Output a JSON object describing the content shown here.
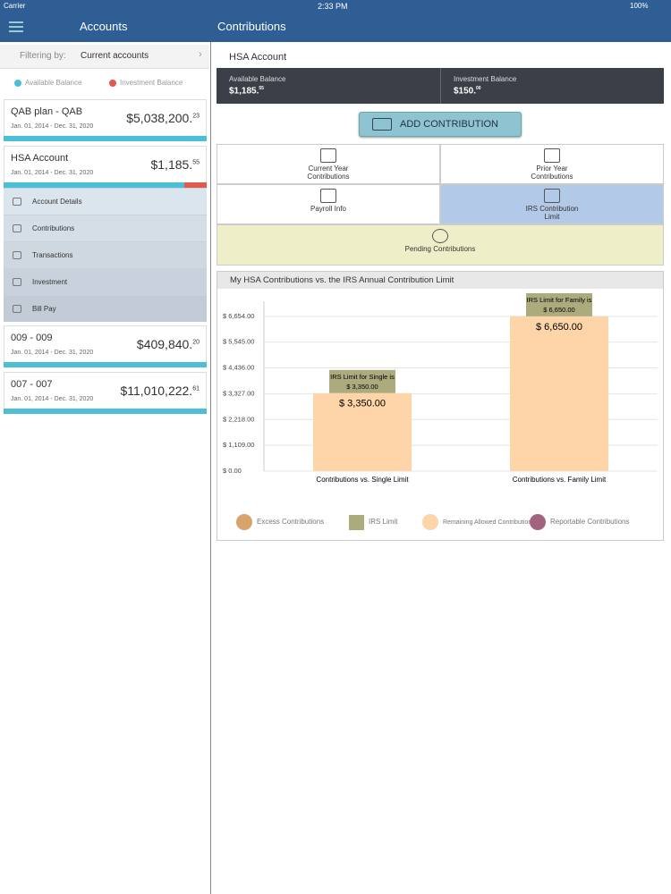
{
  "status_bar": {
    "carrier": "Carrier",
    "time": "2:33 PM",
    "battery": "100%"
  },
  "sidebar": {
    "title": "Accounts",
    "filter_label": "Filtering by:",
    "filter_value": "Current accounts",
    "legend": [
      "Available Balance",
      "Investment Balance"
    ],
    "accounts": [
      {
        "name": "QAB plan - QAB",
        "dates": "Jan. 01, 2014 - Dec. 31, 2020",
        "amount": "$5,038,200.",
        "cents": "23"
      },
      {
        "name": "HSA Account",
        "dates": "Jan. 01, 2014 - Dec. 31, 2020",
        "amount": "$1,185.",
        "cents": "55"
      },
      {
        "name": "009 - 009",
        "dates": "Jan. 01, 2014 - Dec. 31, 2020",
        "amount": "$409,840.",
        "cents": "20"
      },
      {
        "name": "007 - 007",
        "dates": "Jan. 01, 2014 - Dec. 31, 2020",
        "amount": "$11,010,222.",
        "cents": "61"
      }
    ],
    "menu": [
      "Account Details",
      "Contributions",
      "Transactions",
      "Investment",
      "Bill Pay"
    ]
  },
  "main": {
    "title": "Contributions",
    "account": "HSA Account",
    "balances": [
      {
        "label": "Available Balance",
        "amount": "$1,185.",
        "cents": "55"
      },
      {
        "label": "Investment Balance",
        "amount": "$150.",
        "cents": "00"
      }
    ],
    "add_button": "ADD CONTRIBUTION",
    "tabs": [
      "Current Year Contributions",
      "Prior Year Contributions",
      "Payroll Info",
      "IRS Contribution Limit",
      "Pending Contributions"
    ]
  },
  "chart_data": {
    "type": "bar",
    "title": "My HSA Contributions vs. the IRS Annual Contribution Limit",
    "categories": [
      "Contributions vs. Single Limit",
      "Contributions vs. Family Limit"
    ],
    "series": [
      {
        "name": "Excess Contributions",
        "color": "#d9a46c",
        "values": [
          0,
          0
        ]
      },
      {
        "name": "IRS Limit",
        "color": "#abab7e",
        "values": [
          3350,
          6650
        ],
        "labels": [
          "IRS Limit for Single is",
          "IRS Limit for Family is"
        ],
        "value_labels": [
          "$ 3,350.00",
          "$ 6,650.00"
        ]
      },
      {
        "name": "Remaining Allowed Contributions",
        "color": "#fdd5a8",
        "values": [
          3350,
          6650
        ],
        "value_labels": [
          "$ 3,350.00",
          "$ 6,650.00"
        ]
      },
      {
        "name": "Reportable Contributions",
        "color": "#a3637f",
        "values": [
          0,
          0
        ]
      }
    ],
    "ylim": [
      0,
      7300
    ],
    "yticks": [
      {
        "value": 0,
        "label": "$ 0.00"
      },
      {
        "value": 1109,
        "label": "$ 1,109.00"
      },
      {
        "value": 2218,
        "label": "$ 2,218.00"
      },
      {
        "value": 3327,
        "label": "$ 3,327.00"
      },
      {
        "value": 4436,
        "label": "$ 4,436.00"
      },
      {
        "value": 5545,
        "label": "$ 5,545.00"
      },
      {
        "value": 6654,
        "label": "$ 6,654.00"
      }
    ],
    "grid": true
  }
}
